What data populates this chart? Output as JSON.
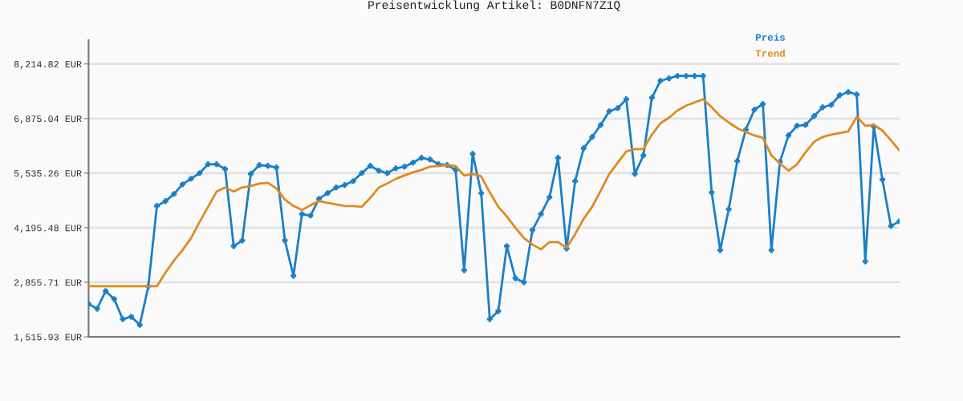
{
  "chart_data": {
    "type": "line",
    "title": "Preisentwicklung Artikel: B0DNFN7Z1Q",
    "categories": [
      null,
      null,
      null,
      null,
      null,
      null,
      null,
      null,
      null,
      null,
      null,
      null,
      null,
      null,
      null,
      null,
      null,
      null,
      null,
      null,
      null,
      null,
      null,
      null,
      null,
      null,
      null,
      null,
      null,
      null,
      null,
      null,
      null,
      null,
      null,
      null,
      null,
      null,
      null,
      null,
      null,
      null,
      null,
      null,
      null,
      null,
      null,
      null,
      null,
      null,
      null,
      null,
      null,
      null,
      null,
      null,
      null,
      null,
      null,
      null,
      null,
      null,
      null,
      null,
      null,
      null,
      null,
      null,
      null,
      null,
      null,
      null,
      null,
      null,
      null,
      null,
      null,
      null,
      null,
      null,
      null,
      null,
      null,
      null,
      null,
      null,
      null,
      null,
      null,
      null,
      null,
      null,
      null,
      null,
      null,
      null
    ],
    "series": [
      {
        "name": "Preis",
        "color": "#1a7fc9",
        "marker": "cross",
        "values": [
          2324,
          2206,
          2639,
          2442,
          1949,
          2009,
          1811,
          2757,
          4728,
          4846,
          5023,
          5259,
          5397,
          5535,
          5752,
          5752,
          5634,
          3742,
          3880,
          5516,
          5732,
          5713,
          5673,
          3880,
          3013,
          4530,
          4491,
          4905,
          5043,
          5181,
          5240,
          5338,
          5535,
          5713,
          5595,
          5535,
          5654,
          5693,
          5792,
          5910,
          5870,
          5752,
          5732,
          5614,
          3151,
          6008,
          5043,
          1949,
          2146,
          3742,
          2954,
          2856,
          4136,
          4530,
          4944,
          5910,
          3683,
          5338,
          6146,
          6422,
          6718,
          7053,
          7131,
          7348,
          5516,
          5969,
          7387,
          7801,
          7860,
          7920,
          7920,
          7920,
          7920,
          5063,
          3644,
          4649,
          5831,
          6599,
          7092,
          7230,
          3644,
          5811,
          6461,
          6698,
          6718,
          6934,
          7151,
          7210,
          7447,
          7525,
          7466,
          3368,
          6678,
          5378,
          4235,
          4353
        ]
      },
      {
        "name": "Trend",
        "color": "#e08a20",
        "marker": "none",
        "values": [
          2757,
          2757,
          2757,
          2757,
          2757,
          2757,
          2757,
          2757,
          2757,
          3092,
          3388,
          3644,
          3939,
          4334,
          4708,
          5082,
          5181,
          5082,
          5181,
          5220,
          5279,
          5299,
          5161,
          4885,
          4728,
          4629,
          4747,
          4846,
          4806,
          4767,
          4728,
          4728,
          4708,
          4925,
          5181,
          5279,
          5397,
          5476,
          5555,
          5614,
          5693,
          5713,
          5732,
          5713,
          5476,
          5516,
          5457,
          5063,
          4708,
          4471,
          4196,
          3939,
          3782,
          3664,
          3841,
          3841,
          3703,
          4038,
          4412,
          4708,
          5102,
          5516,
          5792,
          6067,
          6126,
          6126,
          6481,
          6757,
          6895,
          7072,
          7190,
          7269,
          7348,
          7151,
          6934,
          6777,
          6639,
          6540,
          6461,
          6402,
          5969,
          5772,
          5595,
          5752,
          6048,
          6304,
          6422,
          6481,
          6521,
          6560,
          6915,
          6698,
          6718,
          6580,
          6343,
          6087
        ]
      }
    ],
    "ylim": [
      1515.93,
      8800
    ],
    "yticks": [
      {
        "value": 1515.93,
        "label": "1,515.93 EUR"
      },
      {
        "value": 2855.71,
        "label": "2,855.71 EUR"
      },
      {
        "value": 4195.48,
        "label": "4,195.48 EUR"
      },
      {
        "value": 5535.26,
        "label": "5,535.26 EUR"
      },
      {
        "value": 6875.04,
        "label": "6,875.04 EUR"
      },
      {
        "value": 8214.82,
        "label": "8,214.82 EUR"
      }
    ],
    "grid": "y",
    "legend": "top right",
    "line_style": "solid"
  }
}
